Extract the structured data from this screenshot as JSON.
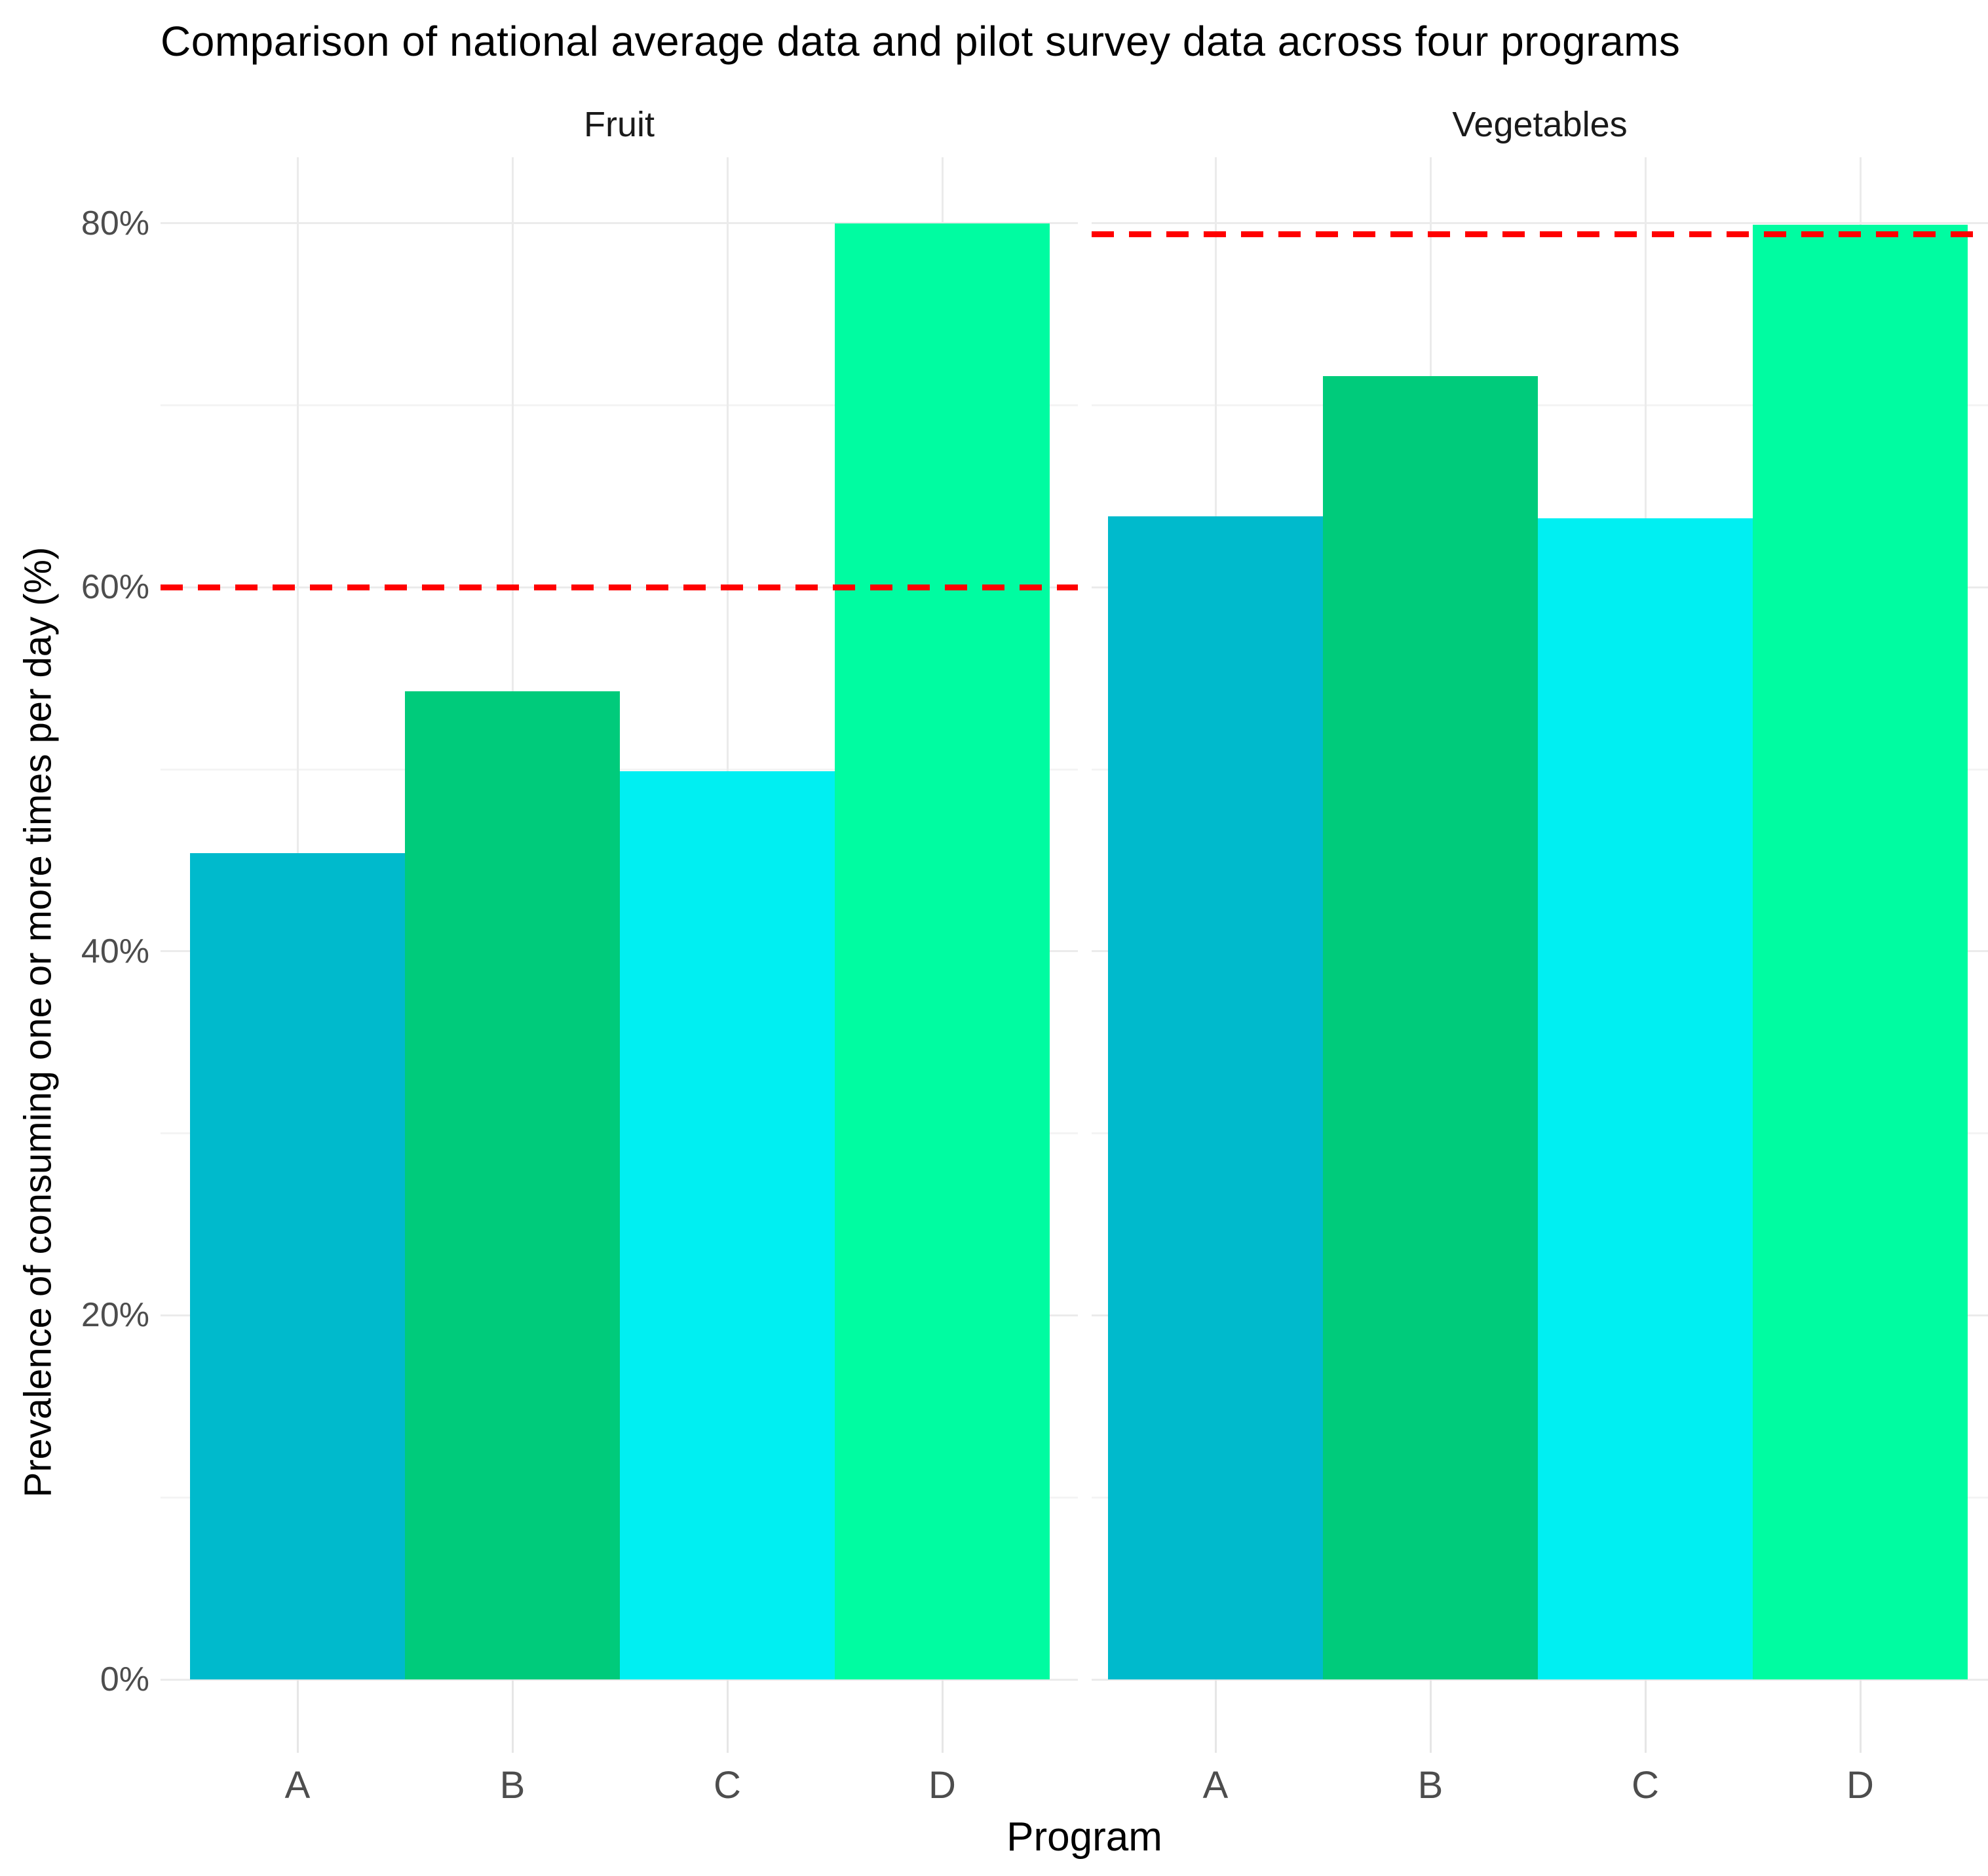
{
  "title": "Comparison of national average data and pilot survey data across four programs",
  "axes": {
    "x_title": "Program",
    "y_title": "Prevalence of consuming one or more times per day (%)",
    "y_tick_labels": [
      "0%",
      "20%",
      "40%",
      "60%",
      "80%"
    ],
    "y_tick_values": [
      0,
      20,
      40,
      60,
      80
    ],
    "y_minor_values": [
      10,
      30,
      50,
      70
    ]
  },
  "colors": {
    "bars_by_category": {
      "A": "#00BACC",
      "B": "#00CB7B",
      "C": "#00EFF2",
      "D": "#00FCA1"
    },
    "national_average_line": "#FF0000",
    "grid_major": "#EBEBEB",
    "grid_minor": "#F4F4F4",
    "tick_stub": "#E6E6E6",
    "tick_label": "#4D4D4D",
    "strip_text": "#1A1A1A",
    "title_text": "#000000",
    "background": "#FFFFFF"
  },
  "chart_data": {
    "type": "bar",
    "title": "Comparison of national average data and pilot survey data across four programs",
    "categories": [
      "A",
      "B",
      "C",
      "D"
    ],
    "series": [
      {
        "facet": "Fruit",
        "values": [
          45.4,
          54.3,
          49.9,
          80.0
        ],
        "national_average": 60.0
      },
      {
        "facet": "Vegetables",
        "values": [
          63.9,
          71.6,
          63.8,
          79.9
        ],
        "national_average": 79.4
      }
    ],
    "xlabel": "Program",
    "ylabel": "Prevalence of consuming one or more times per day (%)",
    "ylim": [
      0,
      83.6
    ],
    "y_ticks_percent": [
      0,
      20,
      40,
      60,
      80
    ],
    "grid": "horizontal major+minor light gray; vertical major at each category",
    "legend": "none",
    "annotations": "red dashed horizontal line per facet = national average"
  }
}
